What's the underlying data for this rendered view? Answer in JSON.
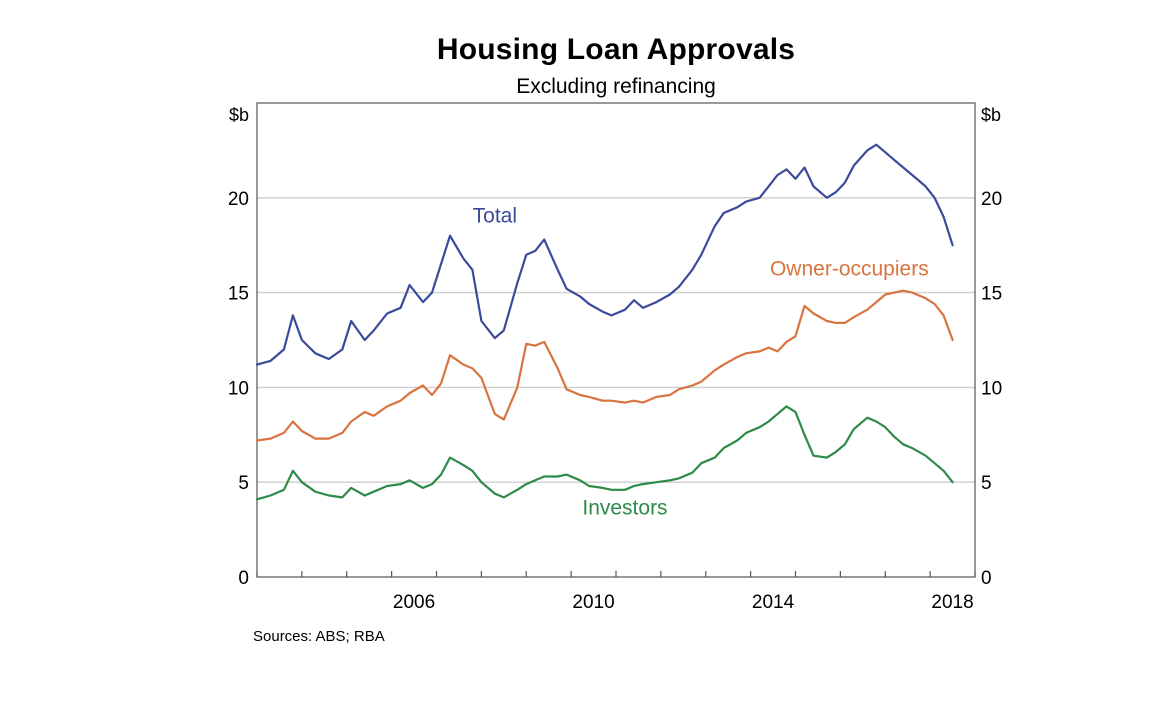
{
  "chart_data": {
    "type": "line",
    "title": "Housing Loan Approvals",
    "subtitle": "Excluding refinancing",
    "ylabel_left": "$b",
    "ylabel_right": "$b",
    "x_ticks": [
      "2006",
      "2010",
      "2014",
      "2018"
    ],
    "y_ticks": [
      "0",
      "5",
      "10",
      "15",
      "20"
    ],
    "ylim": [
      0,
      25
    ],
    "xlim": [
      2003.0,
      2019.0
    ],
    "grid": true,
    "source": "Sources: ABS; RBA",
    "series": [
      {
        "name": "Total",
        "color": "#3c4a9a",
        "x": [
          2003.0,
          2003.3,
          2003.6,
          2003.8,
          2004.0,
          2004.3,
          2004.6,
          2004.9,
          2005.1,
          2005.4,
          2005.6,
          2005.9,
          2006.2,
          2006.4,
          2006.7,
          2006.9,
          2007.1,
          2007.3,
          2007.6,
          2007.8,
          2008.0,
          2008.3,
          2008.5,
          2008.8,
          2009.0,
          2009.2,
          2009.4,
          2009.7,
          2009.9,
          2010.2,
          2010.4,
          2010.7,
          2010.9,
          2011.2,
          2011.4,
          2011.6,
          2011.9,
          2012.2,
          2012.4,
          2012.7,
          2012.9,
          2013.2,
          2013.4,
          2013.7,
          2013.9,
          2014.2,
          2014.4,
          2014.6,
          2014.8,
          2015.0,
          2015.2,
          2015.4,
          2015.7,
          2015.9,
          2016.1,
          2016.3,
          2016.6,
          2016.8,
          2017.0,
          2017.2,
          2017.4,
          2017.6,
          2017.9,
          2018.1,
          2018.3,
          2018.5
        ],
        "values": [
          11.2,
          11.4,
          12.0,
          13.8,
          12.5,
          11.8,
          11.5,
          12.0,
          13.5,
          12.5,
          13.0,
          13.9,
          14.2,
          15.4,
          14.5,
          15.0,
          16.5,
          18.0,
          16.8,
          16.2,
          13.5,
          12.6,
          13.0,
          15.5,
          17.0,
          17.2,
          17.8,
          16.2,
          15.2,
          14.8,
          14.4,
          14.0,
          13.8,
          14.1,
          14.6,
          14.2,
          14.5,
          14.9,
          15.3,
          16.2,
          17.0,
          18.5,
          19.2,
          19.5,
          19.8,
          20.0,
          20.6,
          21.2,
          21.5,
          21.0,
          21.6,
          20.6,
          20.0,
          20.3,
          20.8,
          21.7,
          22.5,
          22.8,
          22.4,
          22.0,
          21.6,
          21.2,
          20.6,
          20.0,
          19.0,
          17.5
        ]
      },
      {
        "name": "Owner-occupiers",
        "color": "#d9733f",
        "x": [
          2003.0,
          2003.3,
          2003.6,
          2003.8,
          2004.0,
          2004.3,
          2004.6,
          2004.9,
          2005.1,
          2005.4,
          2005.6,
          2005.9,
          2006.2,
          2006.4,
          2006.7,
          2006.9,
          2007.1,
          2007.3,
          2007.6,
          2007.8,
          2008.0,
          2008.3,
          2008.5,
          2008.8,
          2009.0,
          2009.2,
          2009.4,
          2009.7,
          2009.9,
          2010.2,
          2010.4,
          2010.7,
          2010.9,
          2011.2,
          2011.4,
          2011.6,
          2011.9,
          2012.2,
          2012.4,
          2012.7,
          2012.9,
          2013.2,
          2013.4,
          2013.7,
          2013.9,
          2014.2,
          2014.4,
          2014.6,
          2014.8,
          2015.0,
          2015.2,
          2015.4,
          2015.7,
          2015.9,
          2016.1,
          2016.3,
          2016.6,
          2016.8,
          2017.0,
          2017.2,
          2017.4,
          2017.6,
          2017.9,
          2018.1,
          2018.3,
          2018.5
        ],
        "values": [
          7.2,
          7.3,
          7.6,
          8.2,
          7.7,
          7.3,
          7.3,
          7.6,
          8.2,
          8.7,
          8.5,
          9.0,
          9.3,
          9.7,
          10.1,
          9.6,
          10.2,
          11.7,
          11.2,
          11.0,
          10.5,
          8.6,
          8.3,
          10.0,
          12.3,
          12.2,
          12.4,
          11.0,
          9.9,
          9.6,
          9.5,
          9.3,
          9.3,
          9.2,
          9.3,
          9.2,
          9.5,
          9.6,
          9.9,
          10.1,
          10.3,
          10.9,
          11.2,
          11.6,
          11.8,
          11.9,
          12.1,
          11.9,
          12.4,
          12.7,
          14.3,
          13.9,
          13.5,
          13.4,
          13.4,
          13.7,
          14.1,
          14.5,
          14.9,
          15.0,
          15.1,
          15.0,
          14.7,
          14.4,
          13.8,
          12.5
        ]
      },
      {
        "name": "Investors",
        "color": "#2e8a48",
        "x": [
          2003.0,
          2003.3,
          2003.6,
          2003.8,
          2004.0,
          2004.3,
          2004.6,
          2004.9,
          2005.1,
          2005.4,
          2005.6,
          2005.9,
          2006.2,
          2006.4,
          2006.7,
          2006.9,
          2007.1,
          2007.3,
          2007.6,
          2007.8,
          2008.0,
          2008.3,
          2008.5,
          2008.8,
          2009.0,
          2009.2,
          2009.4,
          2009.7,
          2009.9,
          2010.2,
          2010.4,
          2010.7,
          2010.9,
          2011.2,
          2011.4,
          2011.6,
          2011.9,
          2012.2,
          2012.4,
          2012.7,
          2012.9,
          2013.2,
          2013.4,
          2013.7,
          2013.9,
          2014.2,
          2014.4,
          2014.6,
          2014.8,
          2015.0,
          2015.2,
          2015.4,
          2015.7,
          2015.9,
          2016.1,
          2016.3,
          2016.6,
          2016.8,
          2017.0,
          2017.2,
          2017.4,
          2017.6,
          2017.9,
          2018.1,
          2018.3,
          2018.5
        ],
        "values": [
          4.1,
          4.3,
          4.6,
          5.6,
          5.0,
          4.5,
          4.3,
          4.2,
          4.7,
          4.3,
          4.5,
          4.8,
          4.9,
          5.1,
          4.7,
          4.9,
          5.4,
          6.3,
          5.9,
          5.6,
          5.0,
          4.4,
          4.2,
          4.6,
          4.9,
          5.1,
          5.3,
          5.3,
          5.4,
          5.1,
          4.8,
          4.7,
          4.6,
          4.6,
          4.8,
          4.9,
          5.0,
          5.1,
          5.2,
          5.5,
          6.0,
          6.3,
          6.8,
          7.2,
          7.6,
          7.9,
          8.2,
          8.6,
          9.0,
          8.7,
          7.5,
          6.4,
          6.3,
          6.6,
          7.0,
          7.8,
          8.4,
          8.2,
          7.9,
          7.4,
          7.0,
          6.8,
          6.4,
          6.0,
          5.6,
          5.0
        ]
      }
    ],
    "labels": {
      "total": "Total",
      "owner": "Owner-occupiers",
      "investors": "Investors"
    }
  }
}
